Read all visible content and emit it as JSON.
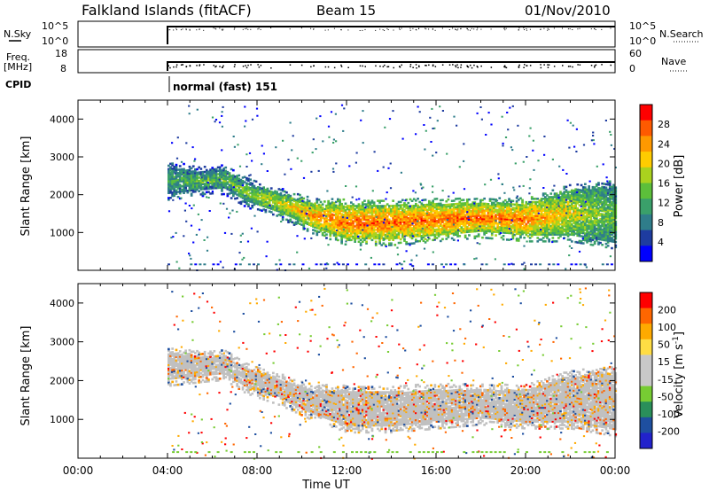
{
  "header": {
    "station": "Falkland Islands (fitACF)",
    "beam": "Beam 15",
    "date": "01/Nov/2010"
  },
  "left_labels": {
    "nsky": "N.Sky",
    "freq_line1": "Freq.",
    "freq_line2": "[MHz]",
    "cpid": "CPID"
  },
  "right_labels": {
    "nsearch": "N.Search",
    "nave": "Nave"
  },
  "cpid_text": "normal (fast) 151",
  "colors": {
    "power_scale": [
      "#0000ff",
      "#1e3ca0",
      "#2f7d8a",
      "#3aa06a",
      "#5cbf3a",
      "#aad21e",
      "#ffcc00",
      "#ff9900",
      "#ff5a00",
      "#ff0000"
    ],
    "velocity_scale": [
      "#ff0000",
      "#ff6600",
      "#ffaa00",
      "#ffdd44",
      "#c8c8c8",
      "#c8c8c8",
      "#77cc33",
      "#2a8f5a",
      "#1e4fa0",
      "#2222cc"
    ],
    "ground_scatter": "#c0c0c0"
  },
  "chart_data": [
    {
      "type": "line",
      "name": "noise-and-search",
      "yticks_left": [
        "10^5",
        "10^0"
      ],
      "yticks_right": [
        "10^5",
        "10^0"
      ],
      "data_start_ut": "04:00",
      "level": "near 10^5 after 04:00"
    },
    {
      "type": "scatter",
      "name": "frequency-and-nave",
      "yticks_left": [
        "18",
        "8"
      ],
      "yticks_right": [
        "60",
        "0"
      ],
      "data_start_ut": "04:00",
      "freq_mhz": 12.5
    },
    {
      "type": "heatmap",
      "name": "power",
      "ylabel": "Slant Range [km]",
      "ylim": [
        0,
        4500
      ],
      "yticks": [
        1000,
        2000,
        3000,
        4000
      ],
      "colorbar_label": "Power [dB]",
      "colorbar_ticks": [
        "28",
        "24",
        "20",
        "16",
        "12",
        "8",
        "4"
      ],
      "colorbar_range": [
        0,
        32
      ],
      "scatter_band": [
        {
          "t": 4.0,
          "lo": 2000,
          "hi": 2700,
          "val": 12
        },
        {
          "t": 5.5,
          "lo": 2100,
          "hi": 2600,
          "val": 14
        },
        {
          "t": 6.5,
          "lo": 2150,
          "hi": 2650,
          "val": 14
        },
        {
          "t": 7.5,
          "lo": 1800,
          "hi": 2300,
          "val": 16
        },
        {
          "t": 9.0,
          "lo": 1500,
          "hi": 2000,
          "val": 20
        },
        {
          "t": 10.5,
          "lo": 1100,
          "hi": 1750,
          "val": 25
        },
        {
          "t": 12.0,
          "lo": 800,
          "hi": 1700,
          "val": 27
        },
        {
          "t": 14.0,
          "lo": 800,
          "hi": 1700,
          "val": 27
        },
        {
          "t": 16.0,
          "lo": 900,
          "hi": 1750,
          "val": 27
        },
        {
          "t": 18.0,
          "lo": 1000,
          "hi": 1750,
          "val": 27
        },
        {
          "t": 20.0,
          "lo": 900,
          "hi": 1750,
          "val": 26
        },
        {
          "t": 22.0,
          "lo": 900,
          "hi": 2100,
          "val": 20
        },
        {
          "t": 24.0,
          "lo": 700,
          "hi": 2200,
          "val": 14
        }
      ]
    },
    {
      "type": "heatmap",
      "name": "velocity",
      "ylabel": "Slant Range [km]",
      "ylim": [
        0,
        4500
      ],
      "yticks": [
        1000,
        2000,
        3000,
        4000
      ],
      "colorbar_label": "Velocity [m s-1]",
      "colorbar_ticks": [
        "200",
        "100",
        "50",
        "15",
        "-15",
        "-50",
        "-100",
        "-200"
      ],
      "xlabel": "Time UT",
      "xlim": [
        0,
        24
      ],
      "xticks": [
        "00:00",
        "04:00",
        "08:00",
        "12:00",
        "16:00",
        "20:00",
        "00:00"
      ]
    }
  ]
}
